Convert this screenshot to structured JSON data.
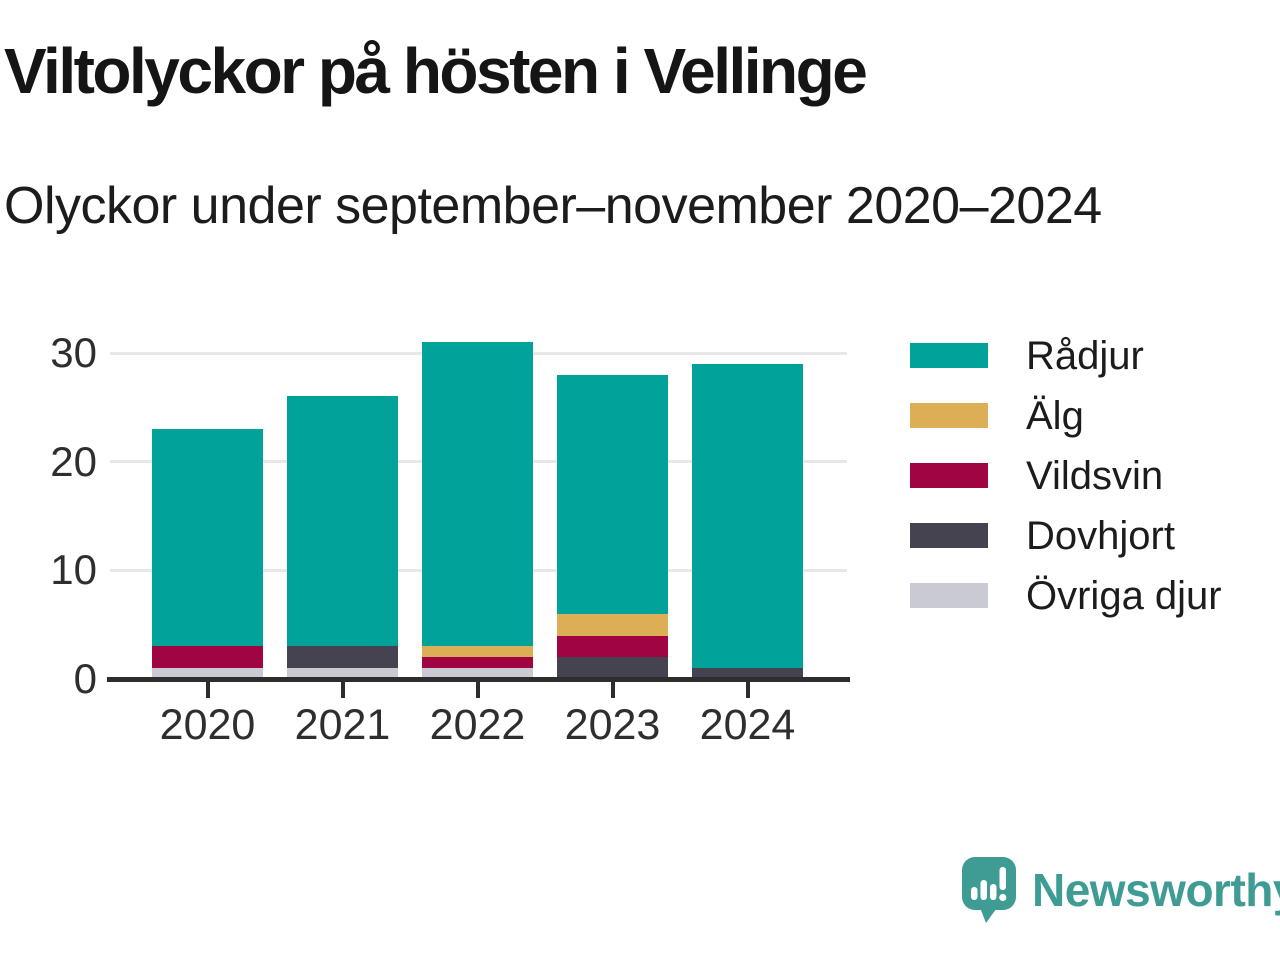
{
  "chart_data": {
    "type": "bar",
    "stacked": true,
    "title": "Viltolyckor på hösten i Vellinge",
    "subtitle": "Olyckor under september–november 2020–2024",
    "xlabel": "",
    "ylabel": "",
    "categories": [
      "2020",
      "2021",
      "2022",
      "2023",
      "2024"
    ],
    "series": [
      {
        "name": "Rådjur",
        "color": "#00A29A",
        "values": [
          20,
          23,
          28,
          22,
          28
        ]
      },
      {
        "name": "Älg",
        "color": "#DCAE55",
        "values": [
          0,
          0,
          1,
          2,
          0
        ]
      },
      {
        "name": "Vildsvin",
        "color": "#A00443",
        "values": [
          2,
          0,
          1,
          2,
          0
        ]
      },
      {
        "name": "Dovhjort",
        "color": "#454350",
        "values": [
          0,
          2,
          0,
          2,
          1
        ]
      },
      {
        "name": "Övriga djur",
        "color": "#CACAD2",
        "values": [
          1,
          1,
          1,
          0,
          0
        ]
      }
    ],
    "stack_order_bottom_to_top": [
      "Övriga djur",
      "Dovhjort",
      "Vildsvin",
      "Älg",
      "Rådjur"
    ],
    "totals": [
      23,
      26,
      31,
      28,
      29
    ],
    "yticks": [
      0,
      10,
      20,
      30
    ],
    "ylim": [
      0,
      31
    ],
    "grid": "horizontal",
    "legend_position": "right"
  },
  "footer": {
    "brand": "Newsworthy",
    "brand_color": "#3F9C94",
    "logo_icon": "speech-bubble-bar-chart-exclamation-icon"
  },
  "colors": {
    "background": "#FFFFFF",
    "axis": "#2D2D2D",
    "gridline": "#E8E8E8",
    "title_text": "#151515",
    "axis_text": "#2E2E2E"
  }
}
